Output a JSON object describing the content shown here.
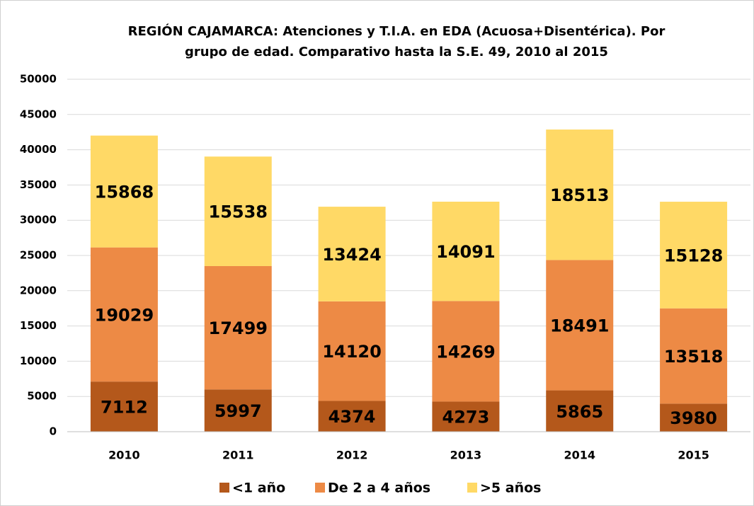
{
  "chart_data": {
    "type": "stacked_bar",
    "title": [
      "REGIÓN CAJAMARCA: Atenciones y T.I.A. en EDA (Acuosa+Disentérica).  Por",
      "grupo de edad. Comparativo hasta la S.E. 49, 2010 al 2015"
    ],
    "categories": [
      "2010",
      "2011",
      "2012",
      "2013",
      "2014",
      "2015"
    ],
    "series": [
      {
        "name": "<1 año",
        "color": "#b4581b",
        "values": [
          7112,
          5997,
          4374,
          4273,
          5865,
          3980
        ]
      },
      {
        "name": "De 2 a 4 años",
        "color": "#ed8a45",
        "values": [
          19029,
          17499,
          14120,
          14269,
          18491,
          13518
        ]
      },
      {
        "name": ">5 años",
        "color": "#ffd966",
        "values": [
          15868,
          15538,
          13424,
          14091,
          18513,
          15128
        ]
      }
    ],
    "ylim": [
      0,
      50000
    ],
    "yticks": [
      0,
      5000,
      10000,
      15000,
      20000,
      25000,
      30000,
      35000,
      40000,
      45000,
      50000
    ],
    "grid": true,
    "legend": "bottom"
  }
}
